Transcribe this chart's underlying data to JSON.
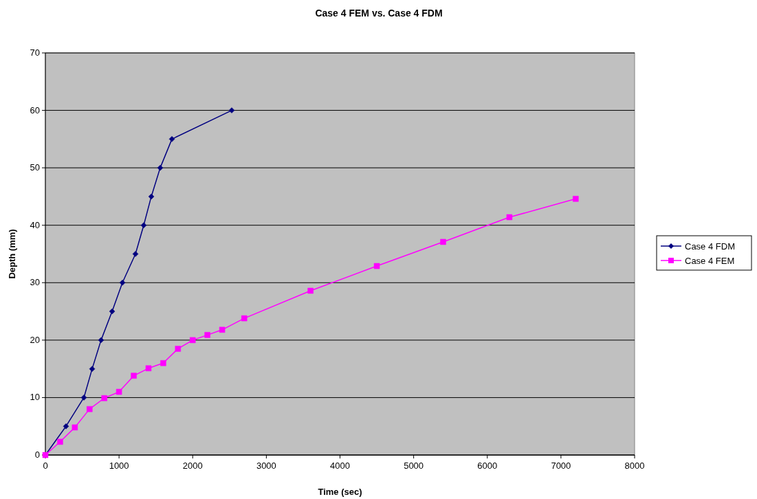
{
  "chart_data": {
    "type": "line",
    "title": "Case 4 FEM vs. Case 4 FDM",
    "xlabel": "Time (sec)",
    "ylabel": "Depth (mm)",
    "xlim": [
      0,
      8000
    ],
    "xticks": [
      0,
      1000,
      2000,
      3000,
      4000,
      5000,
      6000,
      7000,
      8000
    ],
    "ylim": [
      0,
      70
    ],
    "yticks": [
      0,
      10,
      20,
      30,
      40,
      50,
      60,
      70
    ],
    "grid": "y",
    "legend": "right",
    "line_style": "solid",
    "series": [
      {
        "name": "Case 4 FDM",
        "color": "#000080",
        "marker": "diamond",
        "x": [
          0,
          280,
          523,
          635,
          756,
          906,
          1046,
          1223,
          1335,
          1438,
          1559,
          1718,
          2530
        ],
        "values": [
          0,
          5,
          10,
          15,
          20,
          25,
          30,
          35,
          40,
          45,
          50,
          55,
          60
        ]
      },
      {
        "name": "Case 4 FEM",
        "color": "#ff00ff",
        "marker": "square",
        "x": [
          0,
          200,
          400,
          600,
          800,
          1000,
          1200,
          1400,
          1600,
          1800,
          2000,
          2200,
          2400,
          2700,
          3600,
          4500,
          5400,
          6300,
          7200
        ],
        "values": [
          0,
          2.3,
          4.8,
          8,
          9.9,
          11,
          13.8,
          15.1,
          16,
          18.5,
          20,
          20.9,
          21.8,
          23.8,
          28.6,
          32.9,
          37.1,
          41.4,
          44.6
        ]
      }
    ]
  }
}
